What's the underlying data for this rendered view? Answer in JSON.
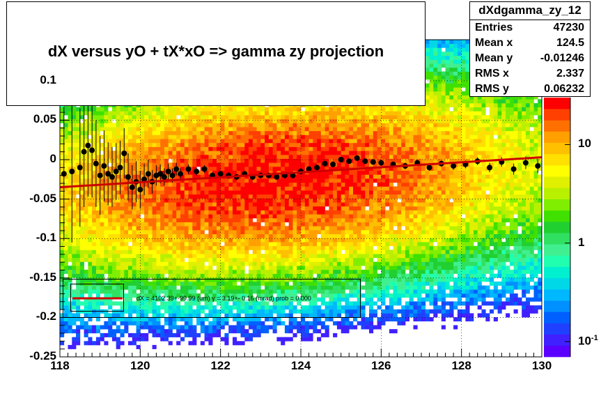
{
  "title": "dX  versus  yO + tX*xO =>  gamma zy projection",
  "stats": {
    "name": "dXdgamma_zy_12",
    "rows": [
      {
        "label": "Entries",
        "value": "47230"
      },
      {
        "label": "Mean x",
        "value": "124.5"
      },
      {
        "label": "Mean y",
        "value": "-0.01246"
      },
      {
        "label": "RMS x",
        "value": "2.337"
      },
      {
        "label": "RMS y",
        "value": "0.06232"
      }
    ]
  },
  "fit_label": "dX = 4102.39+-99.99 (um) γ =    3.19+- 0.16 (mrad) prob = 0.000",
  "colors": {
    "fit_line": "#cc0000",
    "points": "#000000"
  },
  "chart_data": {
    "type": "heatmap",
    "xlim": [
      118,
      130
    ],
    "ylim": [
      -0.25,
      0.15
    ],
    "x_ticks": [
      "118",
      "120",
      "122",
      "124",
      "126",
      "128",
      "130"
    ],
    "y_ticks": [
      "-0.25",
      "-0.2",
      "-0.15",
      "-0.1",
      "-0.05",
      "0",
      "0.05",
      "0.1"
    ],
    "z_scale": "log",
    "z_ticks": [
      {
        "label": "10",
        "exp": "",
        "value": 10
      },
      {
        "label": "1",
        "exp": "",
        "value": 1
      },
      {
        "label": "10",
        "exp": "-1",
        "value": 0.1
      }
    ],
    "zlim": [
      0.07,
      30
    ],
    "palette": [
      "#5b00ff",
      "#4020ff",
      "#2040ff",
      "#0060ff",
      "#0090ff",
      "#00b8ff",
      "#00d8e8",
      "#00f0d0",
      "#20ffb0",
      "#40f090",
      "#30e060",
      "#20d030",
      "#40e000",
      "#80ee00",
      "#b8f000",
      "#e0f000",
      "#ffff00",
      "#ffe000",
      "#ffc000",
      "#ffa000",
      "#ff7000",
      "#ff4000",
      "#ff0000"
    ],
    "density_model": {
      "center": [
        123.4,
        -0.025
      ],
      "sigma_x": 2.3,
      "sigma_y": 0.055,
      "peak": 26,
      "tilt": 0.0032
    },
    "profile_points": {
      "x": [
        118.1,
        118.3,
        118.5,
        118.6,
        118.7,
        118.8,
        118.9,
        119.0,
        119.1,
        119.2,
        119.3,
        119.4,
        119.5,
        119.6,
        119.7,
        119.8,
        119.9,
        120.0,
        120.1,
        120.2,
        120.3,
        120.4,
        120.5,
        120.6,
        120.7,
        120.8,
        120.9,
        121.0,
        121.2,
        121.4,
        121.6,
        121.8,
        122.0,
        122.2,
        122.4,
        122.6,
        122.8,
        123.0,
        123.2,
        123.4,
        123.6,
        123.8,
        124.0,
        124.2,
        124.4,
        124.6,
        124.8,
        125.0,
        125.2,
        125.4,
        125.6,
        125.8,
        126.0,
        126.3,
        126.6,
        126.9,
        127.2,
        127.5,
        127.8,
        128.1,
        128.4,
        128.7,
        129.0,
        129.3,
        129.6,
        129.9
      ],
      "y": [
        -0.018,
        -0.015,
        -0.01,
        0.01,
        0.018,
        0.012,
        -0.005,
        -0.02,
        -0.008,
        -0.018,
        -0.022,
        -0.015,
        -0.01,
        0.008,
        -0.022,
        -0.035,
        -0.028,
        -0.038,
        -0.025,
        -0.018,
        -0.028,
        -0.02,
        -0.018,
        -0.022,
        -0.015,
        -0.02,
        -0.012,
        -0.018,
        -0.012,
        -0.015,
        -0.012,
        -0.02,
        -0.018,
        -0.02,
        -0.022,
        -0.018,
        -0.022,
        -0.02,
        -0.02,
        -0.022,
        -0.02,
        -0.02,
        -0.015,
        -0.012,
        -0.01,
        -0.005,
        -0.006,
        0.0,
        -0.002,
        0.002,
        -0.002,
        -0.003,
        -0.004,
        -0.006,
        -0.008,
        -0.004,
        -0.01,
        -0.005,
        -0.008,
        -0.006,
        -0.002,
        -0.01,
        -0.003,
        -0.012,
        -0.004,
        -0.008
      ],
      "err": [
        0.085,
        0.09,
        0.075,
        0.07,
        0.065,
        0.06,
        0.055,
        0.05,
        0.045,
        0.04,
        0.038,
        0.036,
        0.034,
        0.032,
        0.03,
        0.028,
        0.026,
        0.024,
        0.02,
        0.018,
        0.015,
        0.013,
        0.012,
        0.011,
        0.01,
        0.009,
        0.008,
        0.007,
        0.006,
        0.005,
        0.005,
        0.004,
        0.004,
        0.004,
        0.003,
        0.003,
        0.003,
        0.003,
        0.003,
        0.003,
        0.003,
        0.003,
        0.003,
        0.003,
        0.003,
        0.003,
        0.003,
        0.003,
        0.003,
        0.003,
        0.003,
        0.003,
        0.003,
        0.003,
        0.004,
        0.004,
        0.004,
        0.004,
        0.005,
        0.005,
        0.005,
        0.006,
        0.006,
        0.007,
        0.008,
        0.009
      ]
    },
    "fit_line": {
      "x": [
        118,
        130
      ],
      "y": [
        -0.035,
        0.003
      ]
    }
  }
}
